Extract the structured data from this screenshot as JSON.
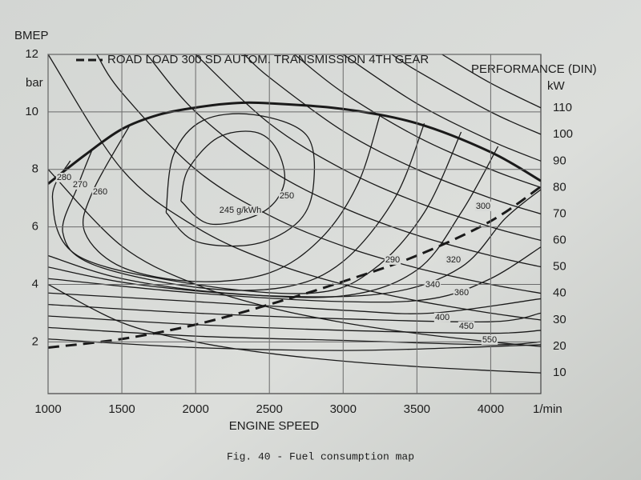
{
  "chart_data": {
    "type": "line",
    "y_label": "BMEP",
    "y_unit": "bar",
    "x_label": "ENGINE SPEED",
    "x_unit": "1/min",
    "y2_label": "PERFORMANCE (DIN)",
    "y2_unit": "kW",
    "caption": "Fig. 40 - Fuel consumption map",
    "xlim": [
      1000,
      4340
    ],
    "ylim": [
      0.2,
      12
    ],
    "xticks": [
      1000,
      1500,
      2000,
      2500,
      3000,
      3500,
      4000
    ],
    "yticks": [
      2,
      4,
      6,
      8,
      10,
      12
    ],
    "grid": true,
    "color": "#1a1a1a",
    "series": [
      {
        "bold": true,
        "x": [
          1000,
          1250,
          1500,
          1750,
          2000,
          2250,
          2500,
          3000,
          3500,
          4000,
          4340
        ],
        "values": [
          7.5,
          8.5,
          9.4,
          9.9,
          10.15,
          10.3,
          10.3,
          10.1,
          9.6,
          8.6,
          7.6
        ]
      },
      {
        "name": "ROAD LOAD 300 SD   AUTOM. TRANSMISSION 4TH GEAR",
        "dashed": true,
        "x": [
          1000,
          1500,
          2000,
          2500,
          3000,
          3500,
          4000,
          4340
        ],
        "values": [
          1.8,
          2.1,
          2.6,
          3.3,
          4.1,
          5.0,
          6.2,
          7.4
        ]
      },
      {
        "name": "10",
        "x": [
          1000,
          1500,
          2000,
          2500,
          3000,
          3500,
          4000,
          4340
        ],
        "values": [
          4.0,
          2.67,
          2.0,
          1.6,
          1.33,
          1.14,
          1.0,
          0.92
        ]
      },
      {
        "name": "20",
        "x": [
          1000,
          1500,
          2000,
          2500,
          3000,
          3500,
          4000,
          4340
        ],
        "values": [
          8.0,
          5.33,
          4.0,
          3.2,
          2.67,
          2.29,
          2.0,
          1.84
        ]
      },
      {
        "name": "30",
        "x": [
          1000,
          1500,
          2000,
          2500,
          3000,
          3500,
          4000,
          4340
        ],
        "values": [
          12.0,
          8.0,
          6.0,
          4.8,
          4.0,
          3.43,
          3.0,
          2.76
        ]
      },
      {
        "name": "40",
        "x": [
          1330,
          1500,
          2000,
          2500,
          3000,
          3500,
          4000,
          4340
        ],
        "values": [
          12.0,
          10.67,
          8.0,
          6.4,
          5.33,
          4.57,
          4.0,
          3.69
        ]
      },
      {
        "name": "50",
        "x": [
          1670,
          2000,
          2500,
          3000,
          3500,
          4000,
          4340
        ],
        "values": [
          12.0,
          10.0,
          8.0,
          6.67,
          5.71,
          5.0,
          4.61
        ]
      },
      {
        "name": "60",
        "x": [
          2000,
          2500,
          3000,
          3500,
          4000,
          4340
        ],
        "values": [
          12.0,
          9.6,
          8.0,
          6.86,
          6.0,
          5.53
        ]
      },
      {
        "name": "70",
        "x": [
          2330,
          2500,
          3000,
          3500,
          4000,
          4340
        ],
        "values": [
          12.0,
          11.2,
          9.33,
          8.0,
          7.0,
          6.45
        ]
      },
      {
        "name": "80",
        "x": [
          2670,
          3000,
          3500,
          4000,
          4340
        ],
        "values": [
          12.0,
          10.67,
          9.14,
          8.0,
          7.37
        ]
      },
      {
        "name": "90",
        "x": [
          3000,
          3500,
          4000,
          4340
        ],
        "values": [
          12.0,
          10.29,
          9.0,
          8.29
        ]
      },
      {
        "name": "100",
        "x": [
          3330,
          3500,
          4000,
          4340
        ],
        "values": [
          12.0,
          11.43,
          10.0,
          9.22
        ]
      },
      {
        "name": "110",
        "x": [
          3670,
          4000,
          4340
        ],
        "values": [
          12.0,
          11.0,
          10.14
        ]
      },
      {
        "name": "245 g/kWh",
        "x": [
          1900,
          1950,
          2150,
          2400,
          2550,
          2600,
          2450,
          2100,
          1900
        ],
        "values": [
          6.9,
          8.0,
          9.1,
          9.3,
          8.7,
          7.5,
          6.5,
          6.1,
          6.9
        ]
      },
      {
        "name": "250",
        "x": [
          1800,
          1850,
          2050,
          2400,
          2750,
          2800,
          2700,
          2400,
          2000,
          1800
        ],
        "values": [
          6.5,
          8.5,
          9.7,
          9.9,
          9.2,
          7.5,
          6.2,
          5.4,
          5.5,
          6.5
        ]
      },
      {
        "name": "260",
        "x": [
          1550,
          1300,
          1250,
          1500,
          2000,
          2500,
          2850,
          3100,
          3250
        ],
        "values": [
          9.5,
          7.2,
          5.8,
          4.6,
          4.1,
          4.4,
          5.6,
          7.5,
          9.9
        ]
      },
      {
        "name": "270",
        "x": [
          1300,
          1200,
          1100,
          1300,
          2000,
          2600,
          3000,
          3350,
          3550
        ],
        "values": [
          8.7,
          7.4,
          5.8,
          4.7,
          3.9,
          3.9,
          4.8,
          7.0,
          9.6
        ]
      },
      {
        "name": "280",
        "x": [
          1150,
          1030,
          1200,
          2000,
          2800,
          3200,
          3550,
          3800
        ],
        "values": [
          8.3,
          7.0,
          5.0,
          4.0,
          3.7,
          4.5,
          6.5,
          9.3
        ]
      },
      {
        "name": "290",
        "x": [
          1000,
          1500,
          2200,
          3000,
          3500,
          3800,
          4050
        ],
        "values": [
          5.0,
          4.2,
          3.7,
          3.6,
          4.5,
          6.5,
          8.8
        ]
      },
      {
        "name": "300",
        "x": [
          1000,
          1600,
          2500,
          3300,
          3800,
          4100,
          4340
        ],
        "values": [
          4.6,
          4.0,
          3.6,
          3.7,
          4.6,
          6.3,
          7.3
        ]
      },
      {
        "name": "320",
        "x": [
          1000,
          2000,
          3000,
          3600,
          4000,
          4340
        ],
        "values": [
          4.2,
          3.7,
          3.4,
          3.5,
          4.2,
          5.3
        ]
      },
      {
        "name": "340",
        "x": [
          1000,
          2000,
          3000,
          3600,
          4340
        ],
        "values": [
          3.7,
          3.4,
          3.1,
          3.0,
          3.5
        ]
      },
      {
        "name": "360",
        "x": [
          1000,
          2000,
          3000,
          4000,
          4340
        ],
        "values": [
          3.3,
          3.0,
          2.8,
          2.7,
          3.0
        ]
      },
      {
        "name": "400",
        "x": [
          1000,
          2000,
          3000,
          4000,
          4340
        ],
        "values": [
          2.9,
          2.6,
          2.4,
          2.3,
          2.4
        ]
      },
      {
        "name": "450",
        "x": [
          1000,
          2000,
          3000,
          4000,
          4340
        ],
        "values": [
          2.5,
          2.2,
          2.05,
          1.9,
          2.0
        ]
      },
      {
        "name": "550",
        "x": [
          1000,
          2000,
          3000,
          3800,
          4340
        ],
        "values": [
          2.1,
          1.8,
          1.7,
          1.8,
          1.9
        ]
      }
    ]
  }
}
